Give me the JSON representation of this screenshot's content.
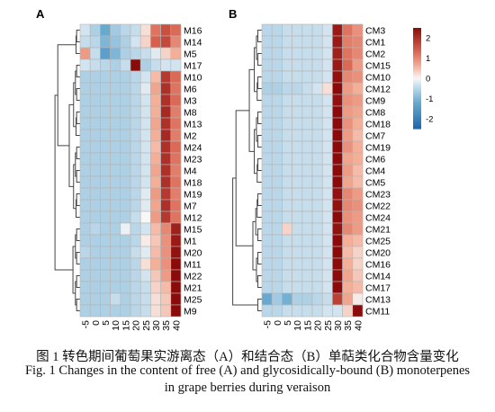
{
  "caption": {
    "zh": "图 1  转色期间葡萄果实游离态（A）和结合态（B）单萜类化合物含量变化",
    "en_line1": "Fig. 1 Changes in the content of free (A) and glycosidically-bound (B) monoterpenes",
    "en_line2": "in grape berries during veraison"
  },
  "chart_data": [
    {
      "type": "heatmap",
      "panel_label": "A",
      "title": "",
      "xlabel": "",
      "ylabel": "",
      "columns": [
        "-5",
        "0",
        "5",
        "10",
        "15",
        "20",
        "25",
        "30",
        "35",
        "40"
      ],
      "rows": [
        "M16",
        "M14",
        "M5",
        "M17",
        "M10",
        "M6",
        "M3",
        "M8",
        "M13",
        "M2",
        "M24",
        "M23",
        "M4",
        "M18",
        "M19",
        "M7",
        "M12",
        "M15",
        "M1",
        "M20",
        "M11",
        "M22",
        "M21",
        "M25",
        "M9"
      ],
      "values": [
        [
          -0.3,
          -0.6,
          -1.2,
          -0.7,
          -0.5,
          -0.4,
          0.2,
          1.2,
          1.6,
          1.3
        ],
        [
          -0.4,
          -0.5,
          -1.0,
          -0.8,
          -0.6,
          -0.3,
          0.3,
          1.4,
          1.7,
          1.0
        ],
        [
          0.8,
          -0.4,
          -1.4,
          -1.0,
          -0.6,
          -0.5,
          -0.4,
          -0.2,
          0.3,
          0.6
        ],
        [
          -0.3,
          -0.4,
          -0.5,
          -0.6,
          -0.4,
          2.9,
          -0.6,
          -0.4,
          -0.3,
          -0.3
        ],
        [
          -0.6,
          -0.6,
          -0.6,
          -0.6,
          -0.6,
          -0.5,
          -0.3,
          0.5,
          1.9,
          1.3
        ],
        [
          -0.6,
          -0.6,
          -0.6,
          -0.6,
          -0.6,
          -0.5,
          -0.2,
          0.7,
          2.0,
          1.2
        ],
        [
          -0.6,
          -0.6,
          -0.6,
          -0.6,
          -0.6,
          -0.5,
          -0.3,
          0.6,
          2.0,
          1.3
        ],
        [
          -0.6,
          -0.6,
          -0.6,
          -0.6,
          -0.6,
          -0.5,
          -0.3,
          0.6,
          2.1,
          1.1
        ],
        [
          -0.6,
          -0.6,
          -0.6,
          -0.6,
          -0.6,
          -0.5,
          -0.3,
          0.7,
          2.0,
          1.2
        ],
        [
          -0.6,
          -0.6,
          -0.6,
          -0.6,
          -0.6,
          -0.5,
          -0.3,
          0.6,
          2.1,
          1.1
        ],
        [
          -0.6,
          -0.6,
          -0.6,
          -0.6,
          -0.6,
          -0.5,
          -0.3,
          0.5,
          2.0,
          1.3
        ],
        [
          -0.6,
          -0.6,
          -0.6,
          -0.6,
          -0.6,
          -0.5,
          -0.3,
          0.6,
          2.0,
          1.2
        ],
        [
          -0.6,
          -0.6,
          -0.6,
          -0.6,
          -0.6,
          -0.5,
          -0.3,
          0.7,
          2.0,
          1.1
        ],
        [
          -0.6,
          -0.6,
          -0.6,
          -0.6,
          -0.6,
          -0.5,
          -0.3,
          0.6,
          2.0,
          1.2
        ],
        [
          -0.6,
          -0.6,
          -0.6,
          -0.6,
          -0.6,
          -0.5,
          -0.2,
          0.8,
          1.9,
          1.1
        ],
        [
          -0.6,
          -0.6,
          -0.6,
          -0.6,
          -0.6,
          -0.5,
          -0.2,
          0.7,
          2.0,
          1.2
        ],
        [
          -0.6,
          -0.6,
          -0.6,
          -0.6,
          -0.6,
          -0.4,
          0.0,
          0.8,
          1.9,
          1.2
        ],
        [
          -0.6,
          -0.5,
          -0.6,
          -0.6,
          -0.1,
          -0.5,
          -0.3,
          0.5,
          1.0,
          2.2
        ],
        [
          -0.6,
          -0.6,
          -0.6,
          -0.6,
          -0.6,
          -0.5,
          0.1,
          0.4,
          0.9,
          2.3
        ],
        [
          -0.5,
          -0.6,
          -0.6,
          -0.6,
          -0.6,
          -0.4,
          -0.2,
          0.5,
          0.9,
          2.4
        ],
        [
          -0.6,
          -0.6,
          -0.6,
          -0.6,
          -0.6,
          -0.5,
          0.2,
          0.6,
          0.9,
          2.5
        ],
        [
          -0.6,
          -0.6,
          -0.6,
          -0.6,
          -0.6,
          -0.5,
          -0.3,
          0.4,
          0.8,
          2.9
        ],
        [
          -0.6,
          -0.6,
          -0.6,
          -0.6,
          -0.6,
          -0.5,
          -0.4,
          0.3,
          0.5,
          3.0
        ],
        [
          -0.6,
          -0.6,
          -0.6,
          -0.4,
          -0.6,
          -0.5,
          -0.4,
          0.2,
          0.4,
          3.0
        ],
        [
          -0.6,
          -0.6,
          -0.6,
          -0.6,
          -0.6,
          -0.5,
          -0.4,
          0.2,
          0.4,
          3.0
        ]
      ]
    },
    {
      "type": "heatmap",
      "panel_label": "B",
      "title": "",
      "xlabel": "",
      "ylabel": "",
      "columns": [
        "-5",
        "0",
        "5",
        "10",
        "15",
        "20",
        "25",
        "30",
        "35",
        "40"
      ],
      "rows": [
        "CM3",
        "CM1",
        "CM2",
        "CM15",
        "CM10",
        "CM12",
        "CM9",
        "CM8",
        "CM18",
        "CM7",
        "CM19",
        "CM6",
        "CM4",
        "CM5",
        "CM23",
        "CM22",
        "CM24",
        "CM21",
        "CM25",
        "CM20",
        "CM16",
        "CM14",
        "CM17",
        "CM13",
        "CM11"
      ],
      "values": [
        [
          -0.5,
          -0.5,
          -0.4,
          -0.4,
          -0.4,
          -0.4,
          -0.3,
          2.3,
          1.2,
          0.9
        ],
        [
          -0.5,
          -0.5,
          -0.4,
          -0.4,
          -0.4,
          -0.4,
          -0.3,
          2.3,
          1.1,
          1.0
        ],
        [
          -0.5,
          -0.5,
          -0.4,
          -0.4,
          -0.4,
          -0.4,
          -0.3,
          2.2,
          1.2,
          1.0
        ],
        [
          -0.5,
          -0.5,
          -0.4,
          -0.4,
          -0.4,
          -0.4,
          -0.3,
          2.3,
          1.3,
          0.8
        ],
        [
          -0.5,
          -0.5,
          -0.4,
          -0.4,
          -0.4,
          -0.4,
          -0.3,
          2.4,
          1.0,
          0.9
        ],
        [
          -0.6,
          -0.6,
          -0.5,
          -0.5,
          -0.4,
          -0.3,
          0.2,
          2.5,
          0.8,
          0.6
        ],
        [
          -0.5,
          -0.5,
          -0.4,
          -0.4,
          -0.4,
          -0.4,
          -0.3,
          2.4,
          0.9,
          0.8
        ],
        [
          -0.5,
          -0.5,
          -0.4,
          -0.4,
          -0.4,
          -0.4,
          -0.3,
          2.5,
          0.8,
          0.7
        ],
        [
          -0.5,
          -0.5,
          -0.4,
          -0.4,
          -0.4,
          -0.4,
          -0.3,
          2.5,
          0.9,
          0.6
        ],
        [
          -0.5,
          -0.5,
          -0.4,
          -0.4,
          -0.4,
          -0.4,
          -0.3,
          2.6,
          0.8,
          0.5
        ],
        [
          -0.5,
          -0.5,
          -0.4,
          -0.4,
          -0.4,
          -0.4,
          -0.3,
          2.5,
          0.9,
          0.6
        ],
        [
          -0.5,
          -0.5,
          -0.4,
          -0.4,
          -0.4,
          -0.4,
          -0.3,
          2.6,
          0.7,
          0.6
        ],
        [
          -0.5,
          -0.5,
          -0.4,
          -0.4,
          -0.4,
          -0.4,
          -0.3,
          2.6,
          0.8,
          0.5
        ],
        [
          -0.5,
          -0.5,
          -0.4,
          -0.4,
          -0.4,
          -0.4,
          -0.3,
          2.6,
          0.7,
          0.5
        ],
        [
          -0.5,
          -0.5,
          -0.4,
          -0.4,
          -0.4,
          -0.4,
          -0.3,
          2.4,
          1.0,
          0.8
        ],
        [
          -0.5,
          -0.5,
          -0.4,
          -0.4,
          -0.4,
          -0.4,
          -0.3,
          2.4,
          1.0,
          0.9
        ],
        [
          -0.5,
          -0.5,
          -0.4,
          -0.4,
          -0.4,
          -0.4,
          -0.3,
          2.5,
          0.9,
          0.8
        ],
        [
          -0.5,
          -0.5,
          0.3,
          -0.4,
          -0.4,
          -0.4,
          -0.3,
          2.4,
          1.0,
          0.8
        ],
        [
          -0.5,
          -0.5,
          -0.4,
          -0.4,
          -0.4,
          -0.4,
          -0.3,
          2.6,
          0.6,
          0.5
        ],
        [
          -0.5,
          -0.5,
          -0.4,
          -0.4,
          -0.4,
          -0.4,
          -0.3,
          2.6,
          0.5,
          0.3
        ],
        [
          -0.5,
          -0.5,
          -0.4,
          -0.4,
          -0.4,
          -0.4,
          -0.3,
          2.6,
          0.6,
          0.3
        ],
        [
          -0.5,
          -0.5,
          -0.4,
          -0.4,
          -0.4,
          -0.4,
          -0.3,
          2.5,
          0.7,
          0.4
        ],
        [
          -0.5,
          -0.5,
          -0.4,
          -0.4,
          -0.4,
          -0.4,
          -0.3,
          2.5,
          0.6,
          0.5
        ],
        [
          -1.2,
          -0.7,
          -1.1,
          -0.6,
          -0.6,
          -0.5,
          -0.4,
          1.8,
          0.7,
          0.1
        ],
        [
          -0.5,
          -0.5,
          -0.4,
          -0.4,
          -0.4,
          -0.4,
          -0.3,
          -0.3,
          0.3,
          2.9
        ]
      ]
    }
  ],
  "colorbar": {
    "ticks": [
      "2",
      "1",
      "0",
      "-1",
      "-2"
    ],
    "tick_values": [
      2,
      1,
      0,
      -1,
      -2
    ],
    "min": -2.5,
    "max": 2.5,
    "colors": {
      "low": "#2166ac",
      "mid": "#f7f7f7",
      "high": "#8b0a0a"
    }
  }
}
